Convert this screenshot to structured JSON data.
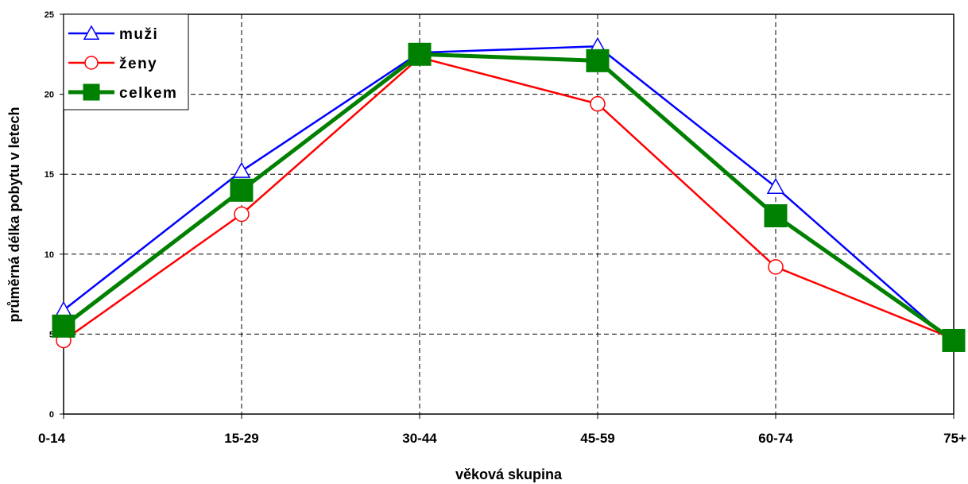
{
  "chart_data": {
    "type": "line",
    "categories": [
      "0-14",
      "15-29",
      "30-44",
      "45-59",
      "60-74",
      "75+"
    ],
    "series": [
      {
        "name": "muži",
        "values": [
          6.5,
          15.2,
          22.6,
          23.0,
          14.2,
          4.4
        ],
        "color": "#0000ff",
        "marker": "triangle-open"
      },
      {
        "name": "ženy",
        "values": [
          4.6,
          12.5,
          22.3,
          19.4,
          9.2,
          4.7
        ],
        "color": "#ff0000",
        "marker": "circle-open"
      },
      {
        "name": "celkem",
        "values": [
          5.5,
          14.0,
          22.5,
          22.1,
          12.4,
          4.6
        ],
        "color": "#008000",
        "marker": "square-filled"
      }
    ],
    "xlabel": "věková skupina",
    "ylabel": "průměrná délka pobytu v letech",
    "ylim": [
      0,
      25
    ],
    "yticks": [
      0,
      5,
      10,
      15,
      20,
      25
    ],
    "grid": true,
    "legend_position": "top-left"
  }
}
